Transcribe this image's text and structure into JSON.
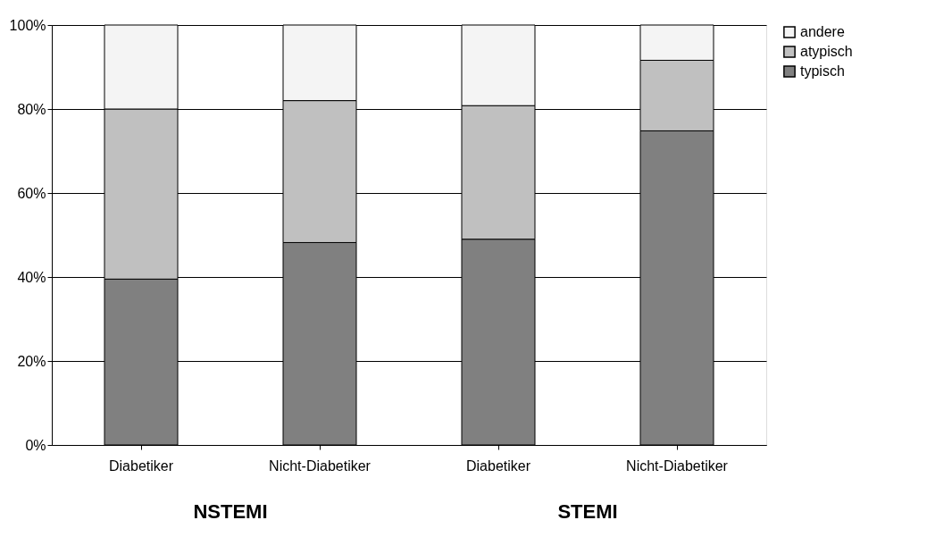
{
  "chart_data": {
    "type": "bar",
    "stacked": true,
    "categories": [
      "Diabetiker",
      "Nicht-Diabetiker",
      "Diabetiker",
      "Nicht-Diabetiker"
    ],
    "series": [
      {
        "name": "typisch",
        "color": "#808080",
        "values": [
          39.5,
          48.2,
          49,
          74.8
        ]
      },
      {
        "name": "atypisch",
        "color": "#c0c0c0",
        "values": [
          40.5,
          33.8,
          31.8,
          16.8
        ]
      },
      {
        "name": "andere",
        "color": "#f4f4f4",
        "values": [
          20,
          18,
          19.2,
          8.4
        ]
      }
    ],
    "ylim": [
      0,
      100
    ],
    "yticks": [
      {
        "value": 0,
        "label": "0%"
      },
      {
        "value": 20,
        "label": "20%"
      },
      {
        "value": 40,
        "label": "40%"
      },
      {
        "value": 60,
        "label": "60%"
      },
      {
        "value": 80,
        "label": "80%"
      },
      {
        "value": 100,
        "label": "100%"
      }
    ],
    "grid": "y",
    "legend": "right",
    "annotations": [
      "NSTEMI",
      "STEMI"
    ]
  }
}
